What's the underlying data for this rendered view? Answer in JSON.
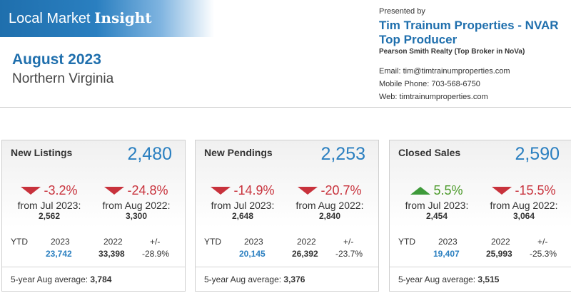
{
  "header": {
    "banner_light": "Local Market ",
    "banner_bold": "Insight",
    "date": "August 2023",
    "region": "Northern Virginia"
  },
  "agent": {
    "presented_by": "Presented by",
    "name": "Tim Trainum Properties - NVAR Top Producer",
    "brokerage": "Pearson Smith Realty (Top Broker in NoVa)",
    "email": "Email: tim@timtrainumproperties.com",
    "phone": "Mobile Phone: 703-568-6750",
    "web": "Web: timtrainumproperties.com"
  },
  "colors": {
    "accent": "#1f6fad",
    "value_blue": "#2a7fc0",
    "negative": "#c8323c",
    "positive": "#4c9a2a"
  },
  "cards": [
    {
      "title": "New Listings",
      "value": "2,480",
      "cmp1": {
        "pct": "-3.2%",
        "dir": "down",
        "label": "from Jul 2023:",
        "num": "2,562"
      },
      "cmp2": {
        "pct": "-24.8%",
        "dir": "down",
        "label": "from Aug 2022:",
        "num": "3,300"
      },
      "ytd": {
        "label": "YTD",
        "y1": "2023",
        "y2": "2022",
        "pm": "+/-",
        "v1": "23,742",
        "v2": "33,398",
        "diff": "-28.9%"
      },
      "avg": {
        "label": "5-year Aug average:",
        "value": "3,784"
      }
    },
    {
      "title": "New Pendings",
      "value": "2,253",
      "cmp1": {
        "pct": "-14.9%",
        "dir": "down",
        "label": "from Jul 2023:",
        "num": "2,648"
      },
      "cmp2": {
        "pct": "-20.7%",
        "dir": "down",
        "label": "from Aug 2022:",
        "num": "2,840"
      },
      "ytd": {
        "label": "YTD",
        "y1": "2023",
        "y2": "2022",
        "pm": "+/-",
        "v1": "20,145",
        "v2": "26,392",
        "diff": "-23.7%"
      },
      "avg": {
        "label": "5-year Aug average:",
        "value": "3,376"
      }
    },
    {
      "title": "Closed Sales",
      "value": "2,590",
      "cmp1": {
        "pct": "5.5%",
        "dir": "up",
        "label": "from Jul 2023:",
        "num": "2,454"
      },
      "cmp2": {
        "pct": "-15.5%",
        "dir": "down",
        "label": "from Aug 2022:",
        "num": "3,064"
      },
      "ytd": {
        "label": "YTD",
        "y1": "2023",
        "y2": "2022",
        "pm": "+/-",
        "v1": "19,407",
        "v2": "25,993",
        "diff": "-25.3%"
      },
      "avg": {
        "label": "5-year Aug average:",
        "value": "3,515"
      }
    }
  ]
}
